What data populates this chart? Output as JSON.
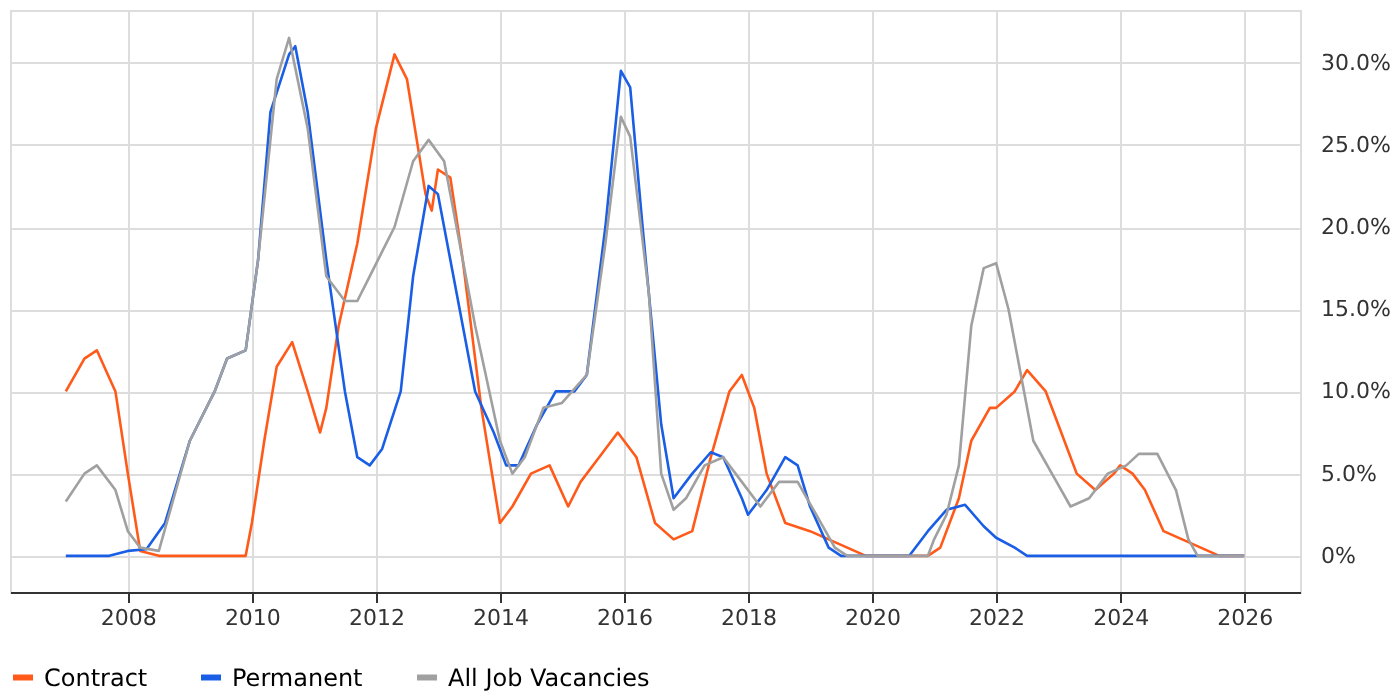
{
  "chart_data": {
    "type": "line",
    "xlim": [
      2006.1,
      2026.9
    ],
    "xticks": [
      2008,
      2010,
      2012,
      2014,
      2016,
      2018,
      2020,
      2022,
      2024,
      2026
    ],
    "ylim": [
      -2.2,
      33.2
    ],
    "yticks": [
      {
        "value": 0,
        "label": "0%"
      },
      {
        "value": 5,
        "label": "5.0%"
      },
      {
        "value": 10,
        "label": "10.0%"
      },
      {
        "value": 15,
        "label": "15.0%"
      },
      {
        "value": 20,
        "label": "20.0%"
      },
      {
        "value": 25,
        "label": "25.0%"
      },
      {
        "value": 30,
        "label": "30.0%"
      }
    ],
    "grid": true,
    "legend": "bottom",
    "marker": "none",
    "line_style": "solid",
    "series": [
      {
        "name": "Contract",
        "color": "#ff5a1a",
        "x": [
          2007.0,
          2007.3,
          2007.5,
          2007.8,
          2008.0,
          2008.2,
          2008.5,
          2009.0,
          2009.5,
          2009.9,
          2010.0,
          2010.2,
          2010.4,
          2010.65,
          2010.9,
          2011.1,
          2011.2,
          2011.4,
          2011.7,
          2012.0,
          2012.3,
          2012.5,
          2012.8,
          2012.9,
          2013.0,
          2013.2,
          2013.4,
          2013.7,
          2014.0,
          2014.2,
          2014.5,
          2014.8,
          2015.1,
          2015.3,
          2015.6,
          2015.9,
          2016.2,
          2016.5,
          2016.8,
          2017.1,
          2017.4,
          2017.7,
          2017.9,
          2018.1,
          2018.3,
          2018.6,
          2019.0,
          2019.3,
          2019.6,
          2019.9,
          2020.9,
          2021.1,
          2021.4,
          2021.6,
          2021.9,
          2022.0,
          2022.3,
          2022.5,
          2022.8,
          2023.0,
          2023.3,
          2023.6,
          2023.9,
          2024.0,
          2024.2,
          2024.4,
          2024.7,
          2025.0,
          2025.3,
          2025.6,
          2026.0
        ],
        "values": [
          10,
          12,
          12.5,
          10,
          5,
          0.3,
          0,
          0,
          0,
          0,
          2,
          7,
          11.5,
          13,
          10,
          7.5,
          9,
          14,
          19,
          26,
          30.5,
          29,
          22,
          21,
          23.5,
          23,
          18,
          9,
          2,
          3,
          5,
          5.5,
          3,
          4.5,
          6,
          7.5,
          6,
          2,
          1,
          1.5,
          6,
          10,
          11,
          9,
          5,
          2,
          1.5,
          1,
          0.5,
          0,
          0,
          0.5,
          3.5,
          7,
          9,
          9,
          10,
          11.3,
          10,
          8,
          5,
          4,
          5,
          5.5,
          5,
          4,
          1.5,
          1,
          0.5,
          0,
          0
        ]
      },
      {
        "name": "Permanent",
        "color": "#1a5ee6",
        "x": [
          2007.0,
          2007.7,
          2008.0,
          2008.3,
          2008.6,
          2009.0,
          2009.4,
          2009.6,
          2009.9,
          2010.1,
          2010.3,
          2010.6,
          2010.7,
          2010.9,
          2011.2,
          2011.5,
          2011.7,
          2011.9,
          2012.1,
          2012.4,
          2012.6,
          2012.85,
          2013.0,
          2013.3,
          2013.6,
          2013.9,
          2014.1,
          2014.3,
          2014.6,
          2014.9,
          2015.2,
          2015.4,
          2015.7,
          2015.95,
          2016.1,
          2016.3,
          2016.6,
          2016.8,
          2017.1,
          2017.4,
          2017.6,
          2017.9,
          2018.0,
          2018.3,
          2018.6,
          2018.8,
          2019.0,
          2019.3,
          2019.5,
          2020.6,
          2020.9,
          2021.2,
          2021.5,
          2021.8,
          2022.0,
          2022.3,
          2022.5,
          2026.0
        ],
        "values": [
          0,
          0,
          0.3,
          0.4,
          2,
          7,
          10,
          12,
          12.5,
          18,
          27,
          30.5,
          31,
          27,
          18,
          10,
          6,
          5.5,
          6.5,
          10,
          17,
          22.5,
          22,
          16,
          10,
          7.5,
          5.5,
          5.5,
          8,
          10,
          10,
          11,
          20,
          29.5,
          28.5,
          20,
          8,
          3.5,
          5,
          6.3,
          6,
          3.5,
          2.5,
          4,
          6,
          5.5,
          3,
          0.5,
          0,
          0,
          1.5,
          2.8,
          3.1,
          1.8,
          1.1,
          0.5,
          0,
          0
        ]
      },
      {
        "name": "All Job Vacancies",
        "color": "#a0a0a0",
        "x": [
          2007.0,
          2007.3,
          2007.5,
          2007.8,
          2008.0,
          2008.2,
          2008.5,
          2009.0,
          2009.4,
          2009.6,
          2009.9,
          2010.1,
          2010.4,
          2010.6,
          2010.9,
          2011.2,
          2011.5,
          2011.7,
          2011.9,
          2012.1,
          2012.3,
          2012.6,
          2012.85,
          2013.1,
          2013.3,
          2013.6,
          2014.0,
          2014.2,
          2014.4,
          2014.7,
          2015.0,
          2015.4,
          2015.7,
          2015.95,
          2016.1,
          2016.4,
          2016.6,
          2016.8,
          2017.0,
          2017.3,
          2017.6,
          2017.9,
          2018.2,
          2018.5,
          2018.8,
          2019.1,
          2019.4,
          2019.6,
          2020.9,
          2021.0,
          2021.2,
          2021.4,
          2021.6,
          2021.8,
          2022.0,
          2022.2,
          2022.4,
          2022.6,
          2022.9,
          2023.2,
          2023.5,
          2023.8,
          2024.1,
          2024.3,
          2024.6,
          2024.9,
          2025.1,
          2025.25,
          2026.0
        ],
        "values": [
          3.3,
          5,
          5.5,
          4,
          1.5,
          0.5,
          0.3,
          7,
          10,
          12,
          12.5,
          18,
          29,
          31.5,
          26,
          17,
          15.5,
          15.5,
          17,
          18.5,
          20,
          24,
          25.3,
          24,
          20,
          14,
          7,
          5,
          6,
          9,
          9.3,
          11,
          19,
          26.7,
          25.5,
          16,
          5,
          2.8,
          3.5,
          5.5,
          6,
          4.5,
          3,
          4.5,
          4.5,
          2.5,
          0.5,
          0,
          0,
          1,
          2.5,
          5.5,
          14,
          17.5,
          17.8,
          15,
          11,
          7,
          5,
          3,
          3.5,
          5,
          5.5,
          6.2,
          6.2,
          4,
          1,
          0,
          0
        ]
      }
    ]
  }
}
